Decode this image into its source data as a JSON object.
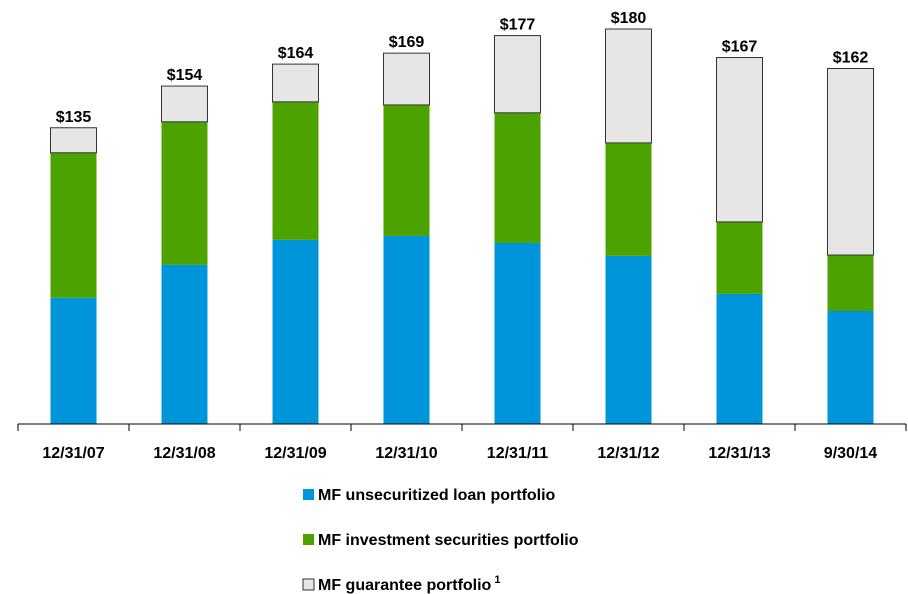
{
  "chart_data": {
    "type": "stacked_bar",
    "categories": [
      "12/31/07",
      "12/31/08",
      "12/31/09",
      "12/31/10",
      "12/31/11",
      "12/31/12",
      "12/31/13",
      "9/30/14"
    ],
    "series": [
      {
        "name": "MF unsecuritized loan portfolio",
        "color": "#0095da",
        "values": [
          57.5,
          72.5,
          83.9,
          85.7,
          82.5,
          76.6,
          59.3,
          51.5
        ]
      },
      {
        "name": "MF investment securities portfolio",
        "color": "#4ca300",
        "values": [
          66.1,
          65.2,
          62.9,
          59.7,
          59.3,
          51.5,
          32.8,
          25.5
        ]
      },
      {
        "name": "MF guarantee portfolio",
        "note": "1",
        "color": "#e6e6e6",
        "values": [
          11.4,
          16.3,
          17.2,
          23.6,
          35.2,
          51.9,
          74.9,
          85.0
        ]
      }
    ],
    "totals": [
      135,
      154,
      164,
      169,
      177,
      180,
      167,
      162
    ],
    "total_labels": [
      "$135",
      "$154",
      "$164",
      "$169",
      "$177",
      "$180",
      "$167",
      "$162"
    ]
  }
}
